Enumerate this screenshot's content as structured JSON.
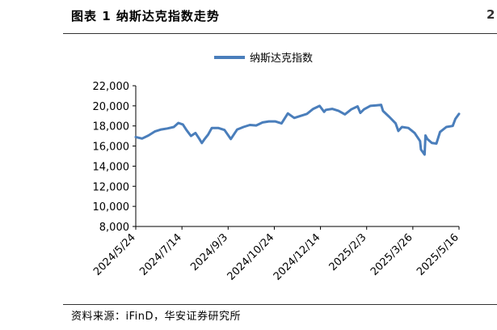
{
  "header": {
    "figure_title": "图表 1 纳斯达克指数走势",
    "edge_mark": "2"
  },
  "footer": {
    "source": "资料来源：iFinD，华安证券研究所"
  },
  "chart_data": {
    "type": "line",
    "title": "",
    "xlabel": "",
    "ylabel": "",
    "ylim": [
      8000,
      22000
    ],
    "yticks": [
      8000,
      10000,
      12000,
      14000,
      16000,
      18000,
      20000,
      22000
    ],
    "ytick_labels": [
      "8,000",
      "10,000",
      "12,000",
      "14,000",
      "16,000",
      "18,000",
      "20,000",
      "22,000"
    ],
    "xlim": [
      "2024-05-24",
      "2025-05-16"
    ],
    "xtick_labels": [
      "2024/5/24",
      "2024/7/14",
      "2024/9/3",
      "2024/10/24",
      "2024/12/14",
      "2025/2/3",
      "2025/3/26",
      "2025/5/16"
    ],
    "xticks": [
      "2024-05-24",
      "2024-07-14",
      "2024-09-03",
      "2024-10-24",
      "2024-12-14",
      "2025-02-03",
      "2025-03-26",
      "2025-05-16"
    ],
    "grid": false,
    "legend": {
      "position": "top-center"
    },
    "line_color": "#4a7ebb",
    "series": [
      {
        "name": "纳斯达克指数",
        "x": [
          "2024-05-24",
          "2024-05-31",
          "2024-06-07",
          "2024-06-14",
          "2024-06-21",
          "2024-06-28",
          "2024-07-05",
          "2024-07-10",
          "2024-07-15",
          "2024-07-19",
          "2024-07-24",
          "2024-07-29",
          "2024-08-02",
          "2024-08-05",
          "2024-08-08",
          "2024-08-12",
          "2024-08-16",
          "2024-08-23",
          "2024-08-30",
          "2024-09-06",
          "2024-09-13",
          "2024-09-20",
          "2024-09-27",
          "2024-10-04",
          "2024-10-11",
          "2024-10-18",
          "2024-10-25",
          "2024-11-01",
          "2024-11-08",
          "2024-11-15",
          "2024-11-22",
          "2024-11-29",
          "2024-12-06",
          "2024-12-13",
          "2024-12-18",
          "2024-12-20",
          "2024-12-27",
          "2025-01-03",
          "2025-01-10",
          "2025-01-17",
          "2025-01-24",
          "2025-01-27",
          "2025-01-31",
          "2025-02-07",
          "2025-02-14",
          "2025-02-19",
          "2025-02-21",
          "2025-02-28",
          "2025-03-07",
          "2025-03-10",
          "2025-03-14",
          "2025-03-21",
          "2025-03-28",
          "2025-04-03",
          "2025-04-04",
          "2025-04-08",
          "2025-04-09",
          "2025-04-11",
          "2025-04-16",
          "2025-04-21",
          "2025-04-25",
          "2025-05-02",
          "2025-05-09",
          "2025-05-12",
          "2025-05-16"
        ],
        "values": [
          16900,
          16750,
          17050,
          17450,
          17650,
          17750,
          17900,
          18300,
          18150,
          17600,
          17000,
          17300,
          16750,
          16300,
          16700,
          17150,
          17800,
          17800,
          17600,
          16700,
          17650,
          17900,
          18100,
          18050,
          18350,
          18450,
          18450,
          18250,
          19250,
          18800,
          19000,
          19200,
          19700,
          20000,
          19400,
          19600,
          19700,
          19500,
          19150,
          19650,
          19950,
          19300,
          19650,
          20000,
          20050,
          20100,
          19500,
          18900,
          18250,
          17500,
          17900,
          17800,
          17300,
          16500,
          15650,
          15150,
          17050,
          16700,
          16300,
          16250,
          17400,
          17900,
          18000,
          18700,
          19200
        ]
      }
    ]
  }
}
